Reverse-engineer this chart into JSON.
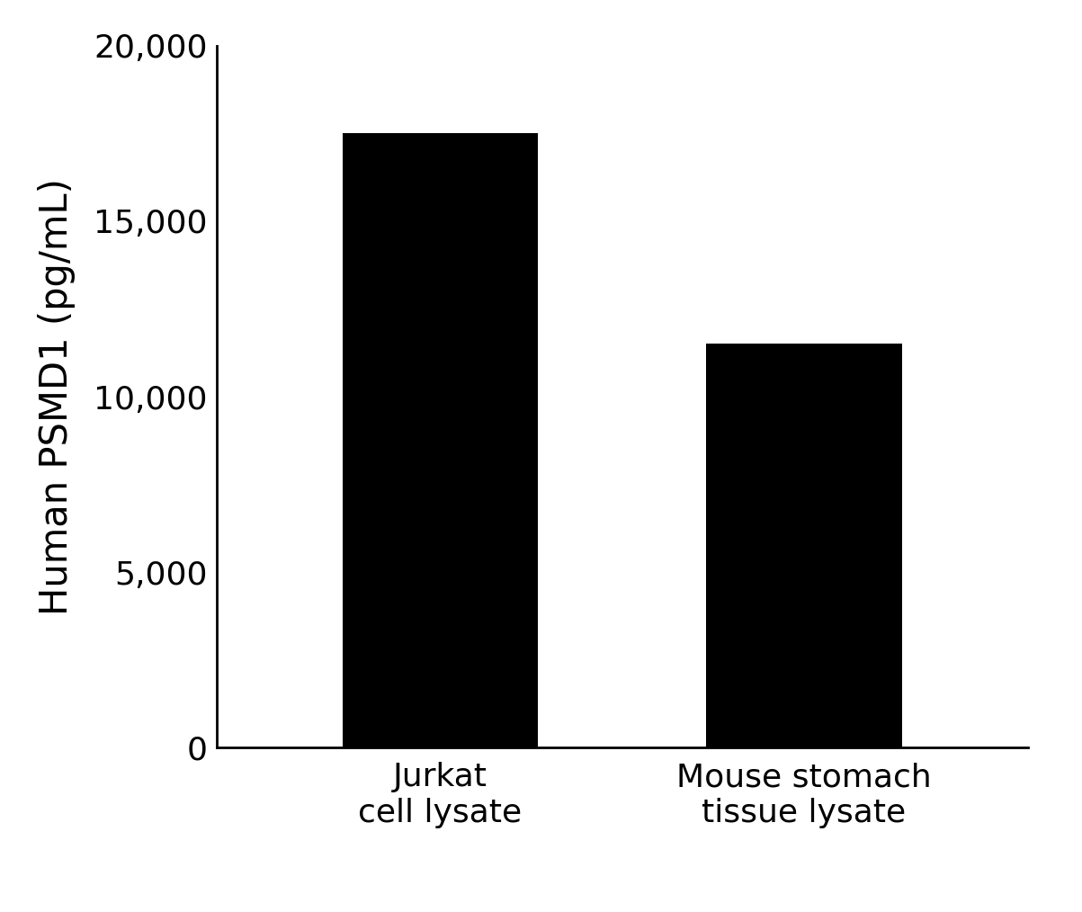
{
  "categories": [
    "Jurkat\ncell lysate",
    "Mouse stomach\ntissue lysate"
  ],
  "values": [
    17515.2,
    11510.8
  ],
  "bar_color": "#000000",
  "ylabel": "Human PSMD1 (pg/mL)",
  "ylim": [
    0,
    20000
  ],
  "yticks": [
    0,
    5000,
    10000,
    15000,
    20000
  ],
  "bar_width": 0.35,
  "background_color": "#ffffff",
  "ylabel_fontsize": 30,
  "tick_fontsize": 26,
  "xlabel_fontsize": 26,
  "bar_positions": [
    0.35,
    1.0
  ]
}
